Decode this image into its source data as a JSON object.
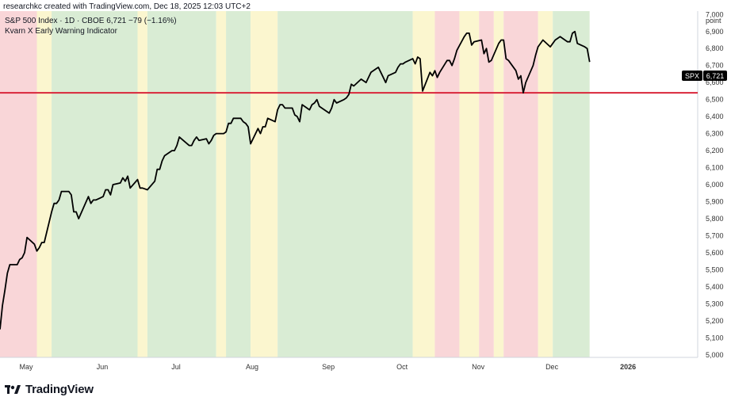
{
  "header": {
    "credit": "researchkc created with TradingView.com, Dec 18, 2025 12:03 UTC+2",
    "symbol_line": "S&P 500 Index · 1D · CBOE  6,721  −79 (−1.16%)",
    "indicator_line": "Kvarn X Early Warning Indicator"
  },
  "brand": {
    "name": "TradingView"
  },
  "colors": {
    "green": "#d9ecd4",
    "yellow": "#fbf6cf",
    "red": "#f9d6d8",
    "price_line": "#000000",
    "hline": "#d9263a"
  },
  "chart_data": {
    "type": "line",
    "title": "S&P 500 Index",
    "price_label": {
      "symbol": "SPX",
      "value": "6,721"
    },
    "y_axis_label": "point",
    "y_ticks": [
      5000,
      5100,
      5200,
      5300,
      5400,
      5500,
      5600,
      5700,
      5800,
      5900,
      6000,
      6100,
      6200,
      6300,
      6400,
      6500,
      6600,
      6700,
      6800,
      6900,
      7000
    ],
    "y_tick_labels": [
      "5,000",
      "5,100",
      "5,200",
      "5,300",
      "5,400",
      "5,500",
      "5,600",
      "5,700",
      "5,800",
      "5,900",
      "6,000",
      "6,100",
      "6,200",
      "6,300",
      "6,400",
      "6,500",
      "6,600",
      "6,700",
      "6,800",
      "6,900",
      "7,000"
    ],
    "ylim": [
      4985,
      7020
    ],
    "x_range": [
      "2025-04-21",
      "2026-01-30"
    ],
    "x_ticks": [
      {
        "date": "2025-05-01",
        "label": "May"
      },
      {
        "date": "2025-06-01",
        "label": "Jun"
      },
      {
        "date": "2025-07-01",
        "label": "Jul"
      },
      {
        "date": "2025-08-01",
        "label": "Aug"
      },
      {
        "date": "2025-09-01",
        "label": "Sep"
      },
      {
        "date": "2025-10-01",
        "label": "Oct"
      },
      {
        "date": "2025-11-01",
        "label": "Nov"
      },
      {
        "date": "2025-12-01",
        "label": "Dec"
      },
      {
        "date": "2026-01-01",
        "label": "2026"
      }
    ],
    "horizontal_line": 6540,
    "zones": [
      {
        "start": "2025-04-21",
        "end": "2025-05-06",
        "signal": "red"
      },
      {
        "start": "2025-05-06",
        "end": "2025-05-12",
        "signal": "yellow"
      },
      {
        "start": "2025-05-12",
        "end": "2025-06-16",
        "signal": "green"
      },
      {
        "start": "2025-06-16",
        "end": "2025-06-20",
        "signal": "yellow"
      },
      {
        "start": "2025-06-20",
        "end": "2025-07-18",
        "signal": "green"
      },
      {
        "start": "2025-07-18",
        "end": "2025-07-22",
        "signal": "yellow"
      },
      {
        "start": "2025-07-22",
        "end": "2025-08-01",
        "signal": "green"
      },
      {
        "start": "2025-08-01",
        "end": "2025-08-12",
        "signal": "yellow"
      },
      {
        "start": "2025-08-12",
        "end": "2025-10-06",
        "signal": "green"
      },
      {
        "start": "2025-10-06",
        "end": "2025-10-15",
        "signal": "yellow"
      },
      {
        "start": "2025-10-15",
        "end": "2025-10-25",
        "signal": "red"
      },
      {
        "start": "2025-10-25",
        "end": "2025-11-02",
        "signal": "yellow"
      },
      {
        "start": "2025-11-02",
        "end": "2025-11-08",
        "signal": "red"
      },
      {
        "start": "2025-11-08",
        "end": "2025-11-12",
        "signal": "yellow"
      },
      {
        "start": "2025-11-12",
        "end": "2025-11-26",
        "signal": "red"
      },
      {
        "start": "2025-11-26",
        "end": "2025-12-02",
        "signal": "yellow"
      },
      {
        "start": "2025-12-02",
        "end": "2025-12-17",
        "signal": "green"
      }
    ],
    "series": [
      {
        "values": [
          [
            "2025-04-21",
            5150
          ],
          [
            "2025-04-22",
            5290
          ],
          [
            "2025-04-23",
            5380
          ],
          [
            "2025-04-24",
            5480
          ],
          [
            "2025-04-25",
            5530
          ],
          [
            "2025-04-28",
            5530
          ],
          [
            "2025-04-29",
            5560
          ],
          [
            "2025-04-30",
            5570
          ],
          [
            "2025-05-01",
            5600
          ],
          [
            "2025-05-02",
            5690
          ],
          [
            "2025-05-05",
            5650
          ],
          [
            "2025-05-06",
            5610
          ],
          [
            "2025-05-07",
            5630
          ],
          [
            "2025-05-08",
            5660
          ],
          [
            "2025-05-09",
            5660
          ],
          [
            "2025-05-12",
            5840
          ],
          [
            "2025-05-13",
            5890
          ],
          [
            "2025-05-14",
            5890
          ],
          [
            "2025-05-15",
            5910
          ],
          [
            "2025-05-16",
            5960
          ],
          [
            "2025-05-19",
            5960
          ],
          [
            "2025-05-20",
            5940
          ],
          [
            "2025-05-21",
            5840
          ],
          [
            "2025-05-22",
            5840
          ],
          [
            "2025-05-23",
            5800
          ],
          [
            "2025-05-27",
            5930
          ],
          [
            "2025-05-28",
            5890
          ],
          [
            "2025-05-29",
            5910
          ],
          [
            "2025-05-30",
            5910
          ],
          [
            "2025-06-02",
            5930
          ],
          [
            "2025-06-03",
            5970
          ],
          [
            "2025-06-04",
            5970
          ],
          [
            "2025-06-05",
            5940
          ],
          [
            "2025-06-06",
            6000
          ],
          [
            "2025-06-09",
            6010
          ],
          [
            "2025-06-10",
            6040
          ],
          [
            "2025-06-11",
            6020
          ],
          [
            "2025-06-12",
            6050
          ],
          [
            "2025-06-13",
            5980
          ],
          [
            "2025-06-16",
            6030
          ],
          [
            "2025-06-17",
            5980
          ],
          [
            "2025-06-18",
            5980
          ],
          [
            "2025-06-20",
            5970
          ],
          [
            "2025-06-23",
            6020
          ],
          [
            "2025-06-24",
            6090
          ],
          [
            "2025-06-25",
            6090
          ],
          [
            "2025-06-26",
            6140
          ],
          [
            "2025-06-27",
            6170
          ],
          [
            "2025-06-30",
            6200
          ],
          [
            "2025-07-01",
            6200
          ],
          [
            "2025-07-02",
            6230
          ],
          [
            "2025-07-03",
            6280
          ],
          [
            "2025-07-07",
            6230
          ],
          [
            "2025-07-08",
            6230
          ],
          [
            "2025-07-09",
            6260
          ],
          [
            "2025-07-10",
            6280
          ],
          [
            "2025-07-11",
            6260
          ],
          [
            "2025-07-14",
            6270
          ],
          [
            "2025-07-15",
            6240
          ],
          [
            "2025-07-16",
            6260
          ],
          [
            "2025-07-17",
            6290
          ],
          [
            "2025-07-18",
            6300
          ],
          [
            "2025-07-21",
            6300
          ],
          [
            "2025-07-22",
            6310
          ],
          [
            "2025-07-23",
            6360
          ],
          [
            "2025-07-24",
            6360
          ],
          [
            "2025-07-25",
            6390
          ],
          [
            "2025-07-28",
            6390
          ],
          [
            "2025-07-29",
            6370
          ],
          [
            "2025-07-30",
            6360
          ],
          [
            "2025-07-31",
            6340
          ],
          [
            "2025-08-01",
            6240
          ],
          [
            "2025-08-04",
            6330
          ],
          [
            "2025-08-05",
            6300
          ],
          [
            "2025-08-06",
            6340
          ],
          [
            "2025-08-07",
            6340
          ],
          [
            "2025-08-08",
            6390
          ],
          [
            "2025-08-11",
            6370
          ],
          [
            "2025-08-12",
            6440
          ],
          [
            "2025-08-13",
            6470
          ],
          [
            "2025-08-14",
            6470
          ],
          [
            "2025-08-15",
            6450
          ],
          [
            "2025-08-18",
            6450
          ],
          [
            "2025-08-19",
            6410
          ],
          [
            "2025-08-20",
            6400
          ],
          [
            "2025-08-21",
            6370
          ],
          [
            "2025-08-22",
            6470
          ],
          [
            "2025-08-25",
            6440
          ],
          [
            "2025-08-26",
            6470
          ],
          [
            "2025-08-27",
            6480
          ],
          [
            "2025-08-28",
            6500
          ],
          [
            "2025-08-29",
            6460
          ],
          [
            "2025-09-02",
            6420
          ],
          [
            "2025-09-03",
            6450
          ],
          [
            "2025-09-04",
            6500
          ],
          [
            "2025-09-05",
            6480
          ],
          [
            "2025-09-08",
            6500
          ],
          [
            "2025-09-09",
            6510
          ],
          [
            "2025-09-10",
            6530
          ],
          [
            "2025-09-11",
            6590
          ],
          [
            "2025-09-12",
            6580
          ],
          [
            "2025-09-15",
            6620
          ],
          [
            "2025-09-16",
            6610
          ],
          [
            "2025-09-17",
            6600
          ],
          [
            "2025-09-18",
            6630
          ],
          [
            "2025-09-19",
            6660
          ],
          [
            "2025-09-22",
            6690
          ],
          [
            "2025-09-23",
            6660
          ],
          [
            "2025-09-24",
            6630
          ],
          [
            "2025-09-25",
            6600
          ],
          [
            "2025-09-26",
            6640
          ],
          [
            "2025-09-29",
            6660
          ],
          [
            "2025-09-30",
            6690
          ],
          [
            "2025-10-01",
            6710
          ],
          [
            "2025-10-02",
            6710
          ],
          [
            "2025-10-03",
            6720
          ],
          [
            "2025-10-06",
            6740
          ],
          [
            "2025-10-07",
            6710
          ],
          [
            "2025-10-08",
            6750
          ],
          [
            "2025-10-09",
            6740
          ],
          [
            "2025-10-10",
            6550
          ],
          [
            "2025-10-13",
            6660
          ],
          [
            "2025-10-14",
            6640
          ],
          [
            "2025-10-15",
            6670
          ],
          [
            "2025-10-16",
            6630
          ],
          [
            "2025-10-17",
            6660
          ],
          [
            "2025-10-20",
            6730
          ],
          [
            "2025-10-21",
            6730
          ],
          [
            "2025-10-22",
            6700
          ],
          [
            "2025-10-23",
            6740
          ],
          [
            "2025-10-24",
            6790
          ],
          [
            "2025-10-27",
            6870
          ],
          [
            "2025-10-28",
            6890
          ],
          [
            "2025-10-29",
            6890
          ],
          [
            "2025-10-30",
            6820
          ],
          [
            "2025-10-31",
            6840
          ],
          [
            "2025-11-03",
            6850
          ],
          [
            "2025-11-04",
            6770
          ],
          [
            "2025-11-05",
            6800
          ],
          [
            "2025-11-06",
            6720
          ],
          [
            "2025-11-07",
            6730
          ],
          [
            "2025-11-10",
            6830
          ],
          [
            "2025-11-11",
            6850
          ],
          [
            "2025-11-12",
            6850
          ],
          [
            "2025-11-13",
            6740
          ],
          [
            "2025-11-14",
            6730
          ],
          [
            "2025-11-17",
            6670
          ],
          [
            "2025-11-18",
            6620
          ],
          [
            "2025-11-19",
            6640
          ],
          [
            "2025-11-20",
            6540
          ],
          [
            "2025-11-21",
            6600
          ],
          [
            "2025-11-24",
            6700
          ],
          [
            "2025-11-25",
            6760
          ],
          [
            "2025-11-26",
            6810
          ],
          [
            "2025-11-28",
            6850
          ],
          [
            "2025-12-01",
            6810
          ],
          [
            "2025-12-02",
            6830
          ],
          [
            "2025-12-03",
            6850
          ],
          [
            "2025-12-04",
            6860
          ],
          [
            "2025-12-05",
            6870
          ],
          [
            "2025-12-08",
            6840
          ],
          [
            "2025-12-09",
            6840
          ],
          [
            "2025-12-10",
            6890
          ],
          [
            "2025-12-11",
            6900
          ],
          [
            "2025-12-12",
            6830
          ],
          [
            "2025-12-15",
            6810
          ],
          [
            "2025-12-16",
            6800
          ],
          [
            "2025-12-17",
            6721
          ]
        ]
      }
    ]
  }
}
